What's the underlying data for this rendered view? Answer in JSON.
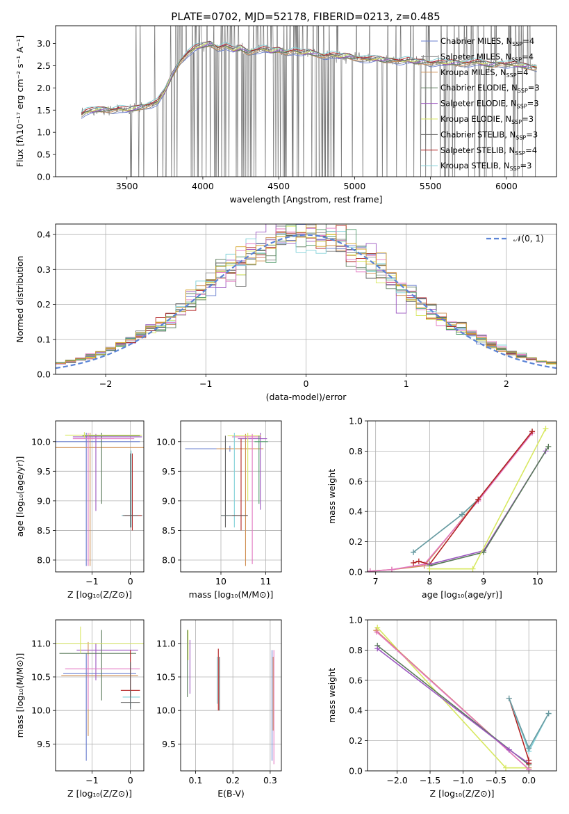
{
  "figure_title": "PLATE=0702, MJD=52178, FIBERID=0213, z=0.485",
  "model_colors": [
    "#6a7fcf",
    "#8a8a8a",
    "#d08f52",
    "#5a7a5a",
    "#9b55c0",
    "#d8e861",
    "#606060",
    "#b22222",
    "#7fd0d8",
    "#e377c2",
    "#4f9a6a",
    "#d4a020"
  ],
  "chart_data": [
    {
      "id": "spectrum",
      "type": "line",
      "title": "PLATE=0702, MJD=52178, FIBERID=0213, z=0.485",
      "xlabel": "wavelength [Angstrom, rest frame]",
      "ylabel": "Flux [fλ10⁻¹⁷ erg cm⁻² s⁻¹ A⁻¹]",
      "xlim": [
        3030,
        6330
      ],
      "ylim": [
        0,
        3.4
      ],
      "xticks": [
        3500,
        4000,
        4500,
        5000,
        5500,
        6000
      ],
      "yticks": [
        0.0,
        0.5,
        1.0,
        1.5,
        2.0,
        2.5,
        3.0
      ],
      "grid": false,
      "legend_position": "top-right",
      "legend": [
        {
          "label": "Chabrier MILES, N",
          "sub": "SSP",
          "suffix": "=4",
          "color": "#6a7fcf"
        },
        {
          "label": "Salpeter MILES, N",
          "sub": "SSP",
          "suffix": "=4",
          "color": "#8a8a8a"
        },
        {
          "label": "Kroupa MILES, N",
          "sub": "SSP",
          "suffix": "=4",
          "color": "#d08f52"
        },
        {
          "label": "Chabrier ELODIE, N",
          "sub": "SSP",
          "suffix": "=3",
          "color": "#5a7a5a"
        },
        {
          "label": "Salpeter ELODIE, N",
          "sub": "SSP",
          "suffix": "=3",
          "color": "#9b55c0"
        },
        {
          "label": "Kroupa ELODIE, N",
          "sub": "SSP",
          "suffix": "=3",
          "color": "#d8e861"
        },
        {
          "label": "Chabrier STELIB, N",
          "sub": "SSP",
          "suffix": "=3",
          "color": "#606060"
        },
        {
          "label": "Salpeter STELIB, N",
          "sub": "SSP",
          "suffix": "=4",
          "color": "#b22222"
        },
        {
          "label": "Kroupa STELIB, N",
          "sub": "SSP",
          "suffix": "=3",
          "color": "#7fd0d8"
        }
      ],
      "continuum": {
        "x": [
          3200,
          3230,
          3260,
          3300,
          3350,
          3400,
          3450,
          3500,
          3550,
          3600,
          3650,
          3700,
          3750,
          3800,
          3850,
          3900,
          3950,
          4000,
          4050,
          4100,
          4150,
          4200,
          4250,
          4300,
          4350,
          4400,
          4450,
          4500,
          4550,
          4600,
          4650,
          4700,
          4750,
          4800,
          4850,
          4900,
          4950,
          5000,
          5050,
          5100,
          5150,
          5200,
          5250,
          5300,
          5350,
          5400,
          5450,
          5500,
          5550,
          5600,
          5650,
          5700,
          5750,
          5800,
          5850,
          5900,
          5950,
          6000,
          6050,
          6100,
          6150,
          6200
        ],
        "y": [
          1.4,
          1.46,
          1.48,
          1.5,
          1.52,
          1.5,
          1.53,
          1.5,
          1.53,
          1.58,
          1.62,
          1.68,
          1.92,
          2.3,
          2.6,
          2.78,
          2.9,
          2.95,
          3.0,
          2.9,
          2.95,
          2.85,
          2.9,
          2.8,
          2.85,
          2.88,
          2.82,
          2.86,
          2.8,
          2.84,
          2.78,
          2.8,
          2.76,
          2.72,
          2.75,
          2.7,
          2.72,
          2.68,
          2.66,
          2.64,
          2.65,
          2.62,
          2.64,
          2.6,
          2.62,
          2.58,
          2.6,
          2.56,
          2.58,
          2.55,
          2.57,
          2.55,
          2.56,
          2.58,
          2.54,
          2.52,
          2.55,
          2.53,
          2.52,
          2.5,
          2.48,
          2.45
        ]
      },
      "data_noise_range": [
        3500,
        6200
      ]
    },
    {
      "id": "residuals",
      "type": "line",
      "xlabel": "(data-model)/error",
      "ylabel": "Normed distribution",
      "xlim": [
        -2.5,
        2.5
      ],
      "ylim": [
        0,
        0.43
      ],
      "xticks": [
        -2,
        -1,
        0,
        1,
        2
      ],
      "yticks": [
        0.0,
        0.1,
        0.2,
        0.3,
        0.4
      ],
      "grid": true,
      "legend_position": "top-right",
      "legend": [
        {
          "label": "𝒩(0, 1)",
          "color": "#5b84d6",
          "style": "dashed"
        }
      ],
      "gaussian": {
        "mean": 0,
        "sigma": 1,
        "color": "#5b84d6"
      },
      "histogram_bin_width": 0.1,
      "histogram_series": 12
    },
    {
      "id": "age_vs_Z",
      "type": "scatter",
      "xlabel": "Z [log₁₀(Z/Z⊙)]",
      "ylabel": "age  [log₁₀(age/yr)]",
      "xlim": [
        -1.95,
        0.35
      ],
      "ylim": [
        7.8,
        10.35
      ],
      "xticks": [
        -1,
        0
      ],
      "yticks": [
        8.0,
        8.5,
        9.0,
        9.5,
        10.0
      ],
      "grid": true,
      "points": [
        {
          "x": -1.15,
          "y": 10.0,
          "ex": [
            -1.4,
            -1.35
          ],
          "ey": [
            2.1,
            0.15
          ],
          "c": "#6a7fcf"
        },
        {
          "x": -1.05,
          "y": 9.9,
          "ex": [
            0.9,
            1.4
          ],
          "ey": [
            2.0,
            0.25
          ],
          "c": "#d08f52"
        },
        {
          "x": -0.9,
          "y": 10.08,
          "ex": [
            0.6,
            1.2
          ],
          "ey": [
            1.25,
            0.05
          ],
          "c": "#9b55c0"
        },
        {
          "x": -0.75,
          "y": 10.1,
          "ex": [
            0.5,
            1.0
          ],
          "ey": [
            1.15,
            0.05
          ],
          "c": "#5a7a5a"
        },
        {
          "x": -1.2,
          "y": 10.11,
          "ex": [
            0.5,
            1.5
          ],
          "ey": [
            0.05,
            0.05
          ],
          "c": "#d8e861"
        },
        {
          "x": -1.1,
          "y": 10.05,
          "ex": [
            0.4,
            1.2
          ],
          "ey": [
            2.15,
            0.1
          ],
          "c": "#e377c2"
        },
        {
          "x": 0.02,
          "y": 8.75,
          "ex": [
            0.25,
            0.3
          ],
          "ey": [
            0.2,
            1.1
          ],
          "c": "#7fd0d8"
        },
        {
          "x": 0.05,
          "y": 8.75,
          "ex": [
            0.2,
            0.25
          ],
          "ey": [
            0.25,
            1.05
          ],
          "c": "#b22222"
        },
        {
          "x": 0.0,
          "y": 8.75,
          "ex": [
            0.2,
            0.2
          ],
          "ey": [
            0.2,
            1.05
          ],
          "c": "#606060"
        }
      ]
    },
    {
      "id": "age_vs_mass",
      "type": "scatter",
      "xlabel": "mass [log₁₀(M/M⊙)]",
      "ylabel": "",
      "xlim": [
        9.1,
        11.35
      ],
      "ylim": [
        7.8,
        10.35
      ],
      "xticks": [
        10,
        11
      ],
      "yticks": [
        8.0,
        8.5,
        9.0,
        9.5,
        10.0
      ],
      "grid": true,
      "points": [
        {
          "x": 10.2,
          "y": 9.88,
          "ex": [
            1.0,
            0.7
          ],
          "ey": [
            0.05,
            0.05
          ],
          "c": "#6a7fcf"
        },
        {
          "x": 10.55,
          "y": 9.88,
          "ex": [
            0.65,
            0.4
          ],
          "ey": [
            1.98,
            0.25
          ],
          "c": "#d08f52"
        },
        {
          "x": 10.88,
          "y": 10.05,
          "ex": [
            0.5,
            0.15
          ],
          "ey": [
            1.2,
            0.1
          ],
          "c": "#9b55c0"
        },
        {
          "x": 10.6,
          "y": 10.1,
          "ex": [
            0.45,
            0.3
          ],
          "ey": [
            1.1,
            0.05
          ],
          "c": "#d8e861"
        },
        {
          "x": 10.7,
          "y": 10.08,
          "ex": [
            0.45,
            0.2
          ],
          "ey": [
            2.15,
            0.05
          ],
          "c": "#e377c2"
        },
        {
          "x": 10.3,
          "y": 8.75,
          "ex": [
            0.3,
            0.3
          ],
          "ey": [
            0.2,
            1.4
          ],
          "c": "#7fd0d8"
        },
        {
          "x": 10.45,
          "y": 8.75,
          "ex": [
            0.2,
            0.15
          ],
          "ey": [
            0.25,
            1.3
          ],
          "c": "#b22222"
        },
        {
          "x": 10.1,
          "y": 8.75,
          "ex": [
            0.1,
            0.5
          ],
          "ey": [
            0.2,
            1.35
          ],
          "c": "#606060"
        },
        {
          "x": 10.85,
          "y": 10.0,
          "ex": [
            0.1,
            0.2
          ],
          "ey": [
            1.05,
            0.1
          ],
          "c": "#4f9a6a"
        }
      ]
    },
    {
      "id": "mass_weight_vs_age",
      "type": "line",
      "xlabel": "age  [log₁₀(age/yr)]",
      "ylabel": "mass weight",
      "xlim": [
        6.85,
        10.35
      ],
      "ylim": [
        0,
        1.0
      ],
      "xticks": [
        7,
        8,
        9,
        10
      ],
      "yticks": [
        0.0,
        0.2,
        0.4,
        0.6,
        0.8,
        1.0
      ],
      "grid": true,
      "series": [
        {
          "c": "#7fd0d8",
          "x": [
            7.7,
            8.6,
            8.9,
            9.9
          ],
          "y": [
            0.13,
            0.38,
            0.48,
            0.93
          ]
        },
        {
          "c": "#6a9aa0",
          "x": [
            7.7,
            8.6,
            8.9,
            9.9
          ],
          "y": [
            0.13,
            0.38,
            0.48,
            0.93
          ]
        },
        {
          "c": "#d08f52",
          "x": [
            6.9,
            7.3,
            7.9,
            8.9,
            9.9
          ],
          "y": [
            0.005,
            0.015,
            0.04,
            0.48,
            0.93
          ]
        },
        {
          "c": "#e377c2",
          "x": [
            6.9,
            7.3,
            7.9,
            8.9,
            9.9
          ],
          "y": [
            0.005,
            0.015,
            0.05,
            0.47,
            0.92
          ]
        },
        {
          "c": "#b22222",
          "x": [
            7.7,
            7.8,
            8.0,
            8.9,
            9.9
          ],
          "y": [
            0.06,
            0.07,
            0.05,
            0.48,
            0.93
          ]
        },
        {
          "c": "#9b55c0",
          "x": [
            8.0,
            9.0,
            10.15
          ],
          "y": [
            0.05,
            0.14,
            0.8
          ]
        },
        {
          "c": "#5a7a5a",
          "x": [
            8.0,
            9.0,
            10.2
          ],
          "y": [
            0.04,
            0.13,
            0.83
          ]
        },
        {
          "c": "#d8e861",
          "x": [
            8.0,
            8.8,
            10.15
          ],
          "y": [
            0.02,
            0.02,
            0.95
          ]
        }
      ]
    },
    {
      "id": "mass_vs_Z",
      "type": "scatter",
      "xlabel": "Z [log₁₀(Z/Z⊙)]",
      "ylabel": "mass [log₁₀(M/M⊙)]",
      "xlim": [
        -1.95,
        0.35
      ],
      "ylim": [
        9.1,
        11.35
      ],
      "xticks": [
        -1,
        0
      ],
      "yticks": [
        9.5,
        10.0,
        10.5,
        11.0
      ],
      "grid": true,
      "points": [
        {
          "x": -1.15,
          "y": 10.55,
          "ex": [
            0.6,
            1.3
          ],
          "ey": [
            1.3,
            0.3
          ],
          "c": "#6a7fcf"
        },
        {
          "x": -1.1,
          "y": 10.52,
          "ex": [
            0.7,
            1.3
          ],
          "ey": [
            0.9,
            0.5
          ],
          "c": "#d08f52"
        },
        {
          "x": -0.9,
          "y": 10.9,
          "ex": [
            0.5,
            1.1
          ],
          "ey": [
            0.45,
            0.1
          ],
          "c": "#9b55c0"
        },
        {
          "x": -0.75,
          "y": 10.85,
          "ex": [
            1.1,
            0.9
          ],
          "ey": [
            0.7,
            0.35
          ],
          "c": "#5a7a5a"
        },
        {
          "x": -1.3,
          "y": 11.0,
          "ex": [
            0.65,
            1.65
          ],
          "ey": [
            0.15,
            0.25
          ],
          "c": "#d8e861"
        },
        {
          "x": -1.1,
          "y": 10.62,
          "ex": [
            0.6,
            1.35
          ],
          "ey": [
            0.6,
            0.2
          ],
          "c": "#e377c2"
        },
        {
          "x": 0.0,
          "y": 10.2,
          "ex": [
            0.2,
            0.25
          ],
          "ey": [
            0.15,
            0.1
          ],
          "c": "#7fd0d8"
        },
        {
          "x": 0.0,
          "y": 10.3,
          "ex": [
            0.25,
            0.25
          ],
          "ey": [
            0.1,
            0.6
          ],
          "c": "#b22222"
        },
        {
          "x": 0.0,
          "y": 10.12,
          "ex": [
            0.25,
            0.25
          ],
          "ey": [
            0.1,
            0.6
          ],
          "c": "#606060"
        }
      ]
    },
    {
      "id": "mass_vs_ebv",
      "type": "scatter",
      "xlabel": "E(B-V)",
      "ylabel": "",
      "xlim": [
        0.06,
        0.33
      ],
      "ylim": [
        9.1,
        11.35
      ],
      "xticks": [
        0.1,
        0.2,
        0.3
      ],
      "yticks": [
        9.5,
        10.0,
        10.5,
        11.0
      ],
      "grid": true,
      "points": [
        {
          "x": 0.078,
          "y": 10.7,
          "ey": [
            0.5,
            0.5
          ],
          "c": "#5a7a5a"
        },
        {
          "x": 0.08,
          "y": 10.95,
          "ey": [
            0.2,
            0.25
          ],
          "c": "#d8e861"
        },
        {
          "x": 0.085,
          "y": 10.7,
          "ey": [
            0.45,
            0.35
          ],
          "c": "#9b55c0"
        },
        {
          "x": 0.158,
          "y": 10.4,
          "ey": [
            0.3,
            0.4
          ],
          "c": "#7fd0d8"
        },
        {
          "x": 0.161,
          "y": 10.5,
          "ey": [
            0.5,
            0.42
          ],
          "c": "#b22222"
        },
        {
          "x": 0.164,
          "y": 10.45,
          "ey": [
            0.45,
            0.35
          ],
          "c": "#606060"
        },
        {
          "x": 0.305,
          "y": 10.2,
          "ey": [
            0.95,
            0.7
          ],
          "c": "#6a7fcf"
        },
        {
          "x": 0.308,
          "y": 10.3,
          "ey": [
            0.6,
            0.5
          ],
          "c": "#d08f52"
        },
        {
          "x": 0.31,
          "y": 10.3,
          "ey": [
            1.1,
            0.6
          ],
          "c": "#e377c2"
        }
      ]
    },
    {
      "id": "mass_weight_vs_Z",
      "type": "line",
      "xlabel": "Z [log₁₀(Z/Z⊙)]",
      "ylabel": "mass weight",
      "xlim": [
        -2.45,
        0.42
      ],
      "ylim": [
        0,
        1.0
      ],
      "xticks": [
        -2.0,
        -1.5,
        -1.0,
        -0.5,
        0.0
      ],
      "yticks": [
        0.0,
        0.2,
        0.4,
        0.6,
        0.8,
        1.0
      ],
      "grid": true,
      "series": [
        {
          "c": "#d8e861",
          "x": [
            -2.3,
            -0.35,
            0.0
          ],
          "y": [
            0.95,
            0.02,
            0.02
          ]
        },
        {
          "c": "#d08f52",
          "x": [
            -2.32,
            0.0,
            0.0
          ],
          "y": [
            0.93,
            0.01,
            0.02
          ]
        },
        {
          "c": "#e377c2",
          "x": [
            -2.31,
            0.0
          ],
          "y": [
            0.92,
            0.01
          ]
        },
        {
          "c": "#5a7a5a",
          "x": [
            -2.3,
            0.0
          ],
          "y": [
            0.83,
            0.04
          ]
        },
        {
          "c": "#9b55c0",
          "x": [
            -2.3,
            -0.3,
            0.0
          ],
          "y": [
            0.81,
            0.14,
            0.05
          ]
        },
        {
          "c": "#b22222",
          "x": [
            -0.3,
            0.0,
            0.0
          ],
          "y": [
            0.48,
            0.07,
            0.05
          ]
        },
        {
          "c": "#7fd0d8",
          "x": [
            -0.3,
            0.0,
            0.3
          ],
          "y": [
            0.48,
            0.13,
            0.38
          ]
        },
        {
          "c": "#6a9aa0",
          "x": [
            -0.3,
            0.0,
            0.3
          ],
          "y": [
            0.48,
            0.15,
            0.38
          ]
        }
      ]
    }
  ]
}
